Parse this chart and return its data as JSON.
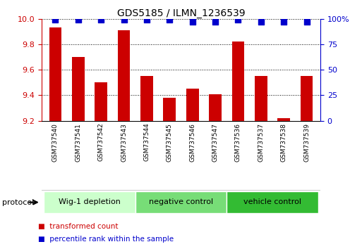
{
  "title": "GDS5185 / ILMN_1236539",
  "samples": [
    "GSM737540",
    "GSM737541",
    "GSM737542",
    "GSM737543",
    "GSM737544",
    "GSM737545",
    "GSM737546",
    "GSM737547",
    "GSM737536",
    "GSM737537",
    "GSM737538",
    "GSM737539"
  ],
  "red_values": [
    9.93,
    9.7,
    9.5,
    9.91,
    9.55,
    9.38,
    9.45,
    9.41,
    9.82,
    9.55,
    9.22,
    9.55
  ],
  "blue_values": [
    99,
    99,
    99,
    99,
    99,
    99,
    97,
    97,
    99,
    97,
    97,
    97
  ],
  "ylim_left": [
    9.2,
    10.0
  ],
  "ylim_right": [
    0,
    100
  ],
  "yticks_left": [
    9.2,
    9.4,
    9.6,
    9.8,
    10.0
  ],
  "yticks_right": [
    0,
    25,
    50,
    75,
    100
  ],
  "groups": [
    {
      "label": "Wig-1 depletion",
      "start": 0,
      "end": 4,
      "color": "#ccffcc"
    },
    {
      "label": "negative control",
      "start": 4,
      "end": 8,
      "color": "#77dd77"
    },
    {
      "label": "vehicle control",
      "start": 8,
      "end": 12,
      "color": "#33bb33"
    }
  ],
  "bar_color": "#cc0000",
  "dot_color": "#0000cc",
  "tick_color_left": "#cc0000",
  "tick_color_right": "#0000cc",
  "bg_color": "#ffffff",
  "plot_bg_color": "#ffffff",
  "grid_color": "#000000",
  "sample_box_color": "#cccccc",
  "legend_red_label": "transformed count",
  "legend_blue_label": "percentile rank within the sample",
  "protocol_label": "protocol",
  "bar_width": 0.55,
  "dot_size": 40,
  "dot_marker": "s",
  "title_fontsize": 10,
  "tick_fontsize": 8,
  "sample_fontsize": 6.5,
  "group_fontsize": 8,
  "legend_fontsize": 7.5
}
